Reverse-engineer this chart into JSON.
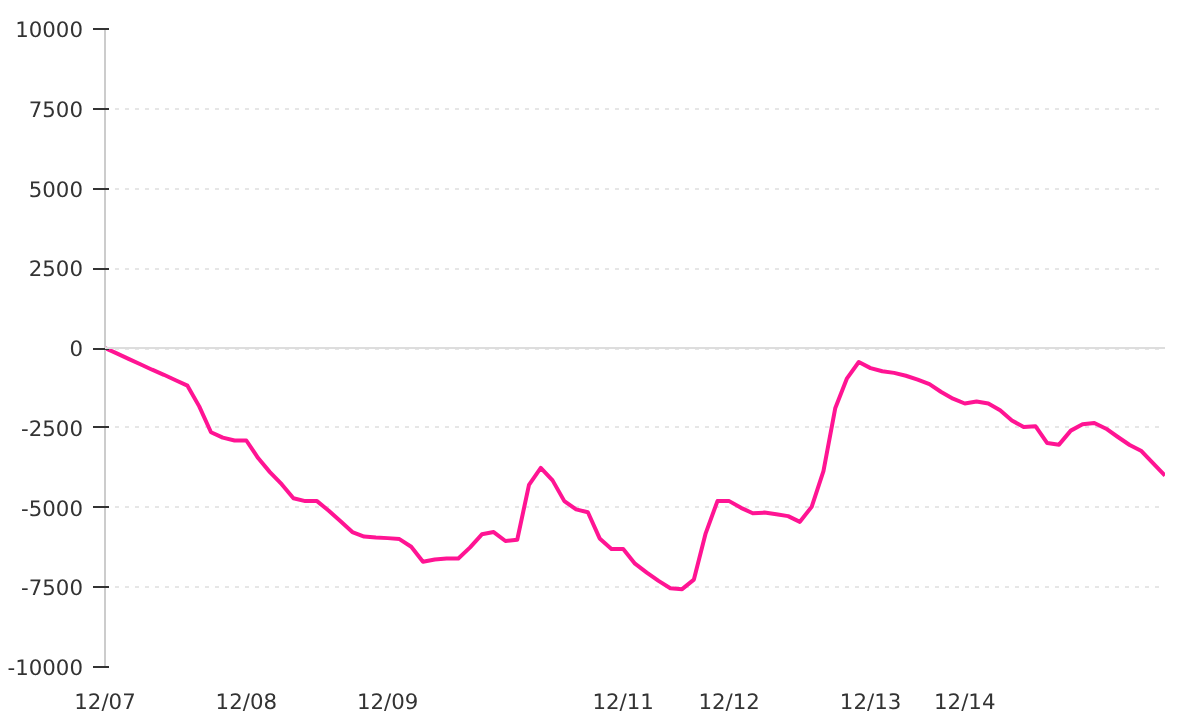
{
  "chart_data": {
    "type": "line",
    "categories": [
      "12/07",
      null,
      null,
      null,
      null,
      null,
      null,
      null,
      null,
      null,
      null,
      null,
      "12/08",
      null,
      null,
      null,
      null,
      null,
      null,
      null,
      null,
      null,
      null,
      null,
      "12/09",
      null,
      null,
      null,
      null,
      null,
      null,
      null,
      null,
      null,
      null,
      null,
      null,
      null,
      null,
      null,
      null,
      null,
      null,
      null,
      "12/11",
      null,
      null,
      null,
      null,
      null,
      null,
      null,
      null,
      "12/12",
      null,
      null,
      null,
      null,
      null,
      null,
      null,
      null,
      null,
      null,
      null,
      "12/13",
      null,
      null,
      null,
      null,
      null,
      null,
      null,
      "12/14",
      null,
      null,
      null,
      null,
      null,
      null,
      null,
      null,
      null,
      null,
      null,
      null,
      null,
      null,
      null,
      null,
      null
    ],
    "series": [
      {
        "color": "#ff1493",
        "values": [
          0,
          -170,
          -340,
          -510,
          -680,
          -840,
          -1010,
          -1180,
          -1830,
          -2640,
          -2810,
          -2900,
          -2900,
          -3450,
          -3890,
          -4270,
          -4710,
          -4800,
          -4800,
          -5100,
          -5430,
          -5770,
          -5910,
          -5940,
          -5960,
          -5990,
          -6230,
          -6700,
          -6630,
          -6600,
          -6600,
          -6250,
          -5840,
          -5770,
          -6050,
          -6010,
          -4290,
          -3760,
          -4150,
          -4800,
          -5060,
          -5150,
          -5970,
          -6300,
          -6300,
          -6760,
          -7040,
          -7300,
          -7530,
          -7560,
          -7260,
          -5810,
          -4800,
          -4800,
          -5010,
          -5180,
          -5160,
          -5210,
          -5270,
          -5450,
          -4980,
          -3860,
          -1890,
          -950,
          -440,
          -630,
          -730,
          -780,
          -870,
          -990,
          -1130,
          -1380,
          -1590,
          -1740,
          -1680,
          -1740,
          -1950,
          -2270,
          -2480,
          -2450,
          -2980,
          -3030,
          -2590,
          -2390,
          -2350,
          -2530,
          -2790,
          -3040,
          -3230,
          -3620,
          -4000
        ]
      }
    ],
    "ylim": [
      -10000,
      10000
    ],
    "yticks": [
      -10000,
      -7500,
      -5000,
      -2500,
      0,
      2500,
      5000,
      7500,
      10000
    ],
    "grid": "y",
    "ref_lines": [
      {
        "axis": "y",
        "value": 0,
        "color": "#dddddd"
      }
    ],
    "marker": "none",
    "line_style": "solid"
  }
}
